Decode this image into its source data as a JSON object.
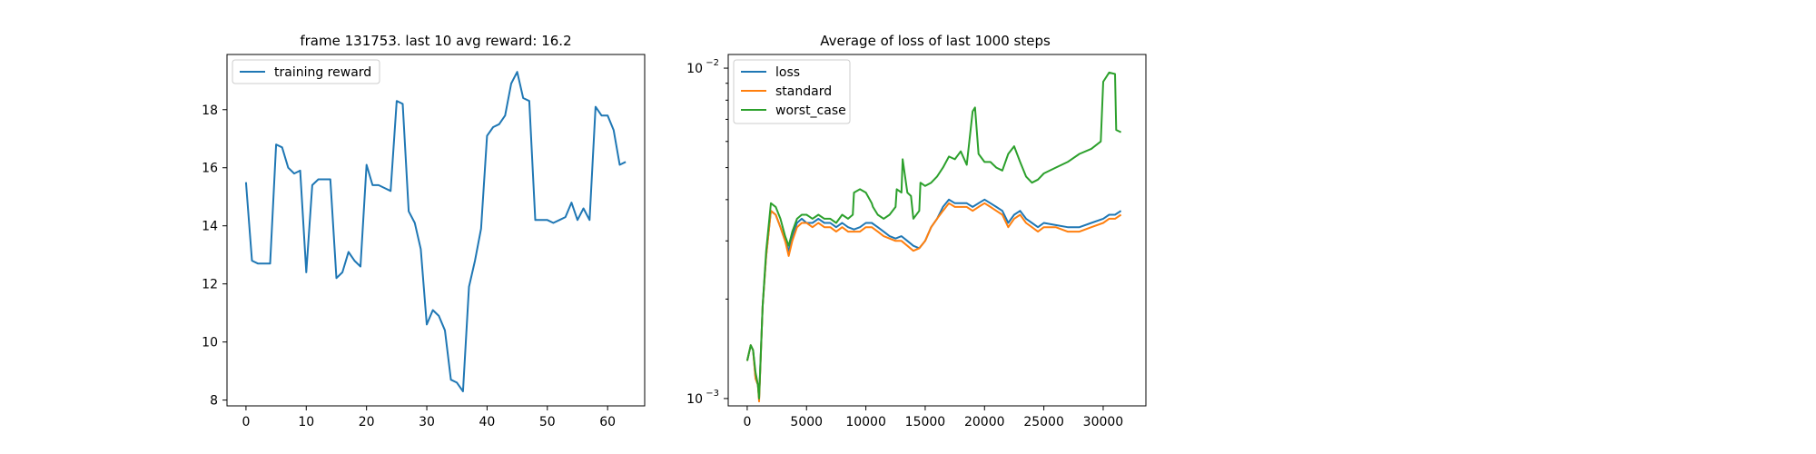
{
  "chart_data": [
    {
      "type": "line",
      "title": "frame 131753. last 10 avg reward: 16.2",
      "xlabel": "",
      "ylabel": "",
      "xlim": [
        -3.15,
        66.15
      ],
      "ylim": [
        7.8,
        19.9
      ],
      "x_ticks": [
        0,
        10,
        20,
        30,
        40,
        50,
        60
      ],
      "y_ticks": [
        8,
        10,
        12,
        14,
        16,
        18
      ],
      "x_tick_labels": [
        "0",
        "10",
        "20",
        "30",
        "40",
        "50",
        "60"
      ],
      "y_tick_labels": [
        "8",
        "10",
        "12",
        "14",
        "16",
        "18"
      ],
      "yscale": "linear",
      "grid": false,
      "legend_position": "upper left",
      "series": [
        {
          "name": "training reward",
          "color": "#1f77b4",
          "x": [
            0,
            1,
            2,
            3,
            4,
            5,
            6,
            7,
            8,
            9,
            10,
            11,
            12,
            13,
            14,
            15,
            16,
            17,
            18,
            19,
            20,
            21,
            22,
            23,
            24,
            25,
            26,
            27,
            28,
            29,
            30,
            31,
            32,
            33,
            34,
            35,
            36,
            37,
            38,
            39,
            40,
            41,
            42,
            43,
            44,
            45,
            46,
            47,
            48,
            49,
            50,
            51,
            52,
            53,
            54,
            55,
            56,
            57,
            58,
            59,
            60,
            61,
            62,
            63
          ],
          "values": [
            15.5,
            12.8,
            12.7,
            12.7,
            12.7,
            16.8,
            16.7,
            16.0,
            15.8,
            15.9,
            12.4,
            15.4,
            15.6,
            15.6,
            15.6,
            12.2,
            12.4,
            13.1,
            12.8,
            12.6,
            16.1,
            15.4,
            15.4,
            15.3,
            15.2,
            18.3,
            18.2,
            14.5,
            14.1,
            13.2,
            10.6,
            11.1,
            10.9,
            10.4,
            8.7,
            8.6,
            8.3,
            11.9,
            12.8,
            13.9,
            17.1,
            17.4,
            17.5,
            17.8,
            18.9,
            19.3,
            18.4,
            18.3,
            14.2,
            14.2,
            14.2,
            14.1,
            14.2,
            14.3,
            14.8,
            14.2,
            14.6,
            14.2,
            18.1,
            17.8,
            17.8,
            17.3,
            16.1,
            16.2
          ]
        }
      ]
    },
    {
      "type": "line",
      "title": "Average of loss of last 1000 steps",
      "xlabel": "",
      "ylabel": "",
      "xlim": [
        -1600,
        33600
      ],
      "ylim": [
        0.00095,
        0.011
      ],
      "yscale": "log",
      "x_ticks": [
        0,
        5000,
        10000,
        15000,
        20000,
        25000,
        30000
      ],
      "x_tick_labels": [
        "0",
        "5000",
        "10000",
        "15000",
        "20000",
        "25000",
        "30000"
      ],
      "y_major_ticks": [
        0.001,
        0.01
      ],
      "y_major_tick_labels": [
        [
          "10",
          "−3"
        ],
        [
          "10",
          "−2"
        ]
      ],
      "grid": false,
      "legend_position": "upper left",
      "series": [
        {
          "name": "loss",
          "color": "#1f77b4",
          "x": [
            0,
            300,
            500,
            700,
            900,
            1000,
            1300,
            1600,
            2000,
            2400,
            2800,
            3200,
            3500,
            3800,
            4200,
            4600,
            5000,
            5500,
            6000,
            6500,
            7000,
            7500,
            8000,
            8500,
            9000,
            9500,
            10000,
            10500,
            11000,
            11500,
            12000,
            12500,
            13000,
            13500,
            14000,
            14500,
            15000,
            15500,
            16000,
            16500,
            17000,
            17500,
            18000,
            18500,
            19000,
            19500,
            20000,
            20500,
            21000,
            21500,
            22000,
            22500,
            23000,
            23500,
            24000,
            24500,
            25000,
            26000,
            27000,
            28000,
            29000,
            30000,
            30500,
            31000,
            31500
          ],
          "values": [
            0.0013,
            0.00145,
            0.0014,
            0.00115,
            0.0011,
            0.001,
            0.0019,
            0.0027,
            0.0037,
            0.0036,
            0.0033,
            0.003,
            0.0028,
            0.0031,
            0.0034,
            0.0035,
            0.0034,
            0.0034,
            0.0035,
            0.0034,
            0.0034,
            0.0033,
            0.0034,
            0.0033,
            0.00325,
            0.0033,
            0.0034,
            0.0034,
            0.0033,
            0.0032,
            0.0031,
            0.00305,
            0.0031,
            0.003,
            0.0029,
            0.00285,
            0.003,
            0.0033,
            0.0035,
            0.0038,
            0.004,
            0.0039,
            0.0039,
            0.0039,
            0.0038,
            0.0039,
            0.004,
            0.0039,
            0.0038,
            0.0037,
            0.0034,
            0.0036,
            0.0037,
            0.0035,
            0.0034,
            0.0033,
            0.0034,
            0.00335,
            0.0033,
            0.0033,
            0.0034,
            0.0035,
            0.0036,
            0.0036,
            0.0037
          ]
        },
        {
          "name": "standard",
          "color": "#ff7f0e",
          "x": [
            0,
            300,
            500,
            700,
            900,
            1000,
            1300,
            1600,
            2000,
            2400,
            2800,
            3200,
            3500,
            3800,
            4200,
            4600,
            5000,
            5500,
            6000,
            6500,
            7000,
            7500,
            8000,
            8500,
            9000,
            9500,
            10000,
            10500,
            11000,
            11500,
            12000,
            12500,
            13000,
            13500,
            14000,
            14500,
            15000,
            15500,
            16000,
            16500,
            17000,
            17500,
            18000,
            18500,
            19000,
            19500,
            20000,
            20500,
            21000,
            21500,
            22000,
            22500,
            23000,
            23500,
            24000,
            24500,
            25000,
            26000,
            27000,
            28000,
            29000,
            30000,
            30500,
            31000,
            31500
          ],
          "values": [
            0.0013,
            0.00145,
            0.0014,
            0.00115,
            0.0011,
            0.00098,
            0.0019,
            0.0027,
            0.0037,
            0.0036,
            0.0033,
            0.003,
            0.0027,
            0.003,
            0.0033,
            0.0034,
            0.0034,
            0.0033,
            0.0034,
            0.0033,
            0.0033,
            0.0032,
            0.0033,
            0.0032,
            0.0032,
            0.0032,
            0.0033,
            0.0033,
            0.0032,
            0.0031,
            0.00305,
            0.003,
            0.003,
            0.0029,
            0.0028,
            0.00285,
            0.003,
            0.0033,
            0.0035,
            0.0037,
            0.0039,
            0.0038,
            0.0038,
            0.0038,
            0.0037,
            0.0038,
            0.0039,
            0.0038,
            0.0037,
            0.0036,
            0.0033,
            0.0035,
            0.0036,
            0.0034,
            0.0033,
            0.0032,
            0.0033,
            0.0033,
            0.0032,
            0.0032,
            0.0033,
            0.0034,
            0.0035,
            0.0035,
            0.0036
          ]
        },
        {
          "name": "worst_case",
          "color": "#2ca02c",
          "x": [
            0,
            300,
            500,
            700,
            900,
            1000,
            1300,
            1600,
            2000,
            2400,
            2800,
            3200,
            3500,
            3800,
            4200,
            4600,
            5000,
            5500,
            6000,
            6500,
            7000,
            7500,
            8000,
            8500,
            8900,
            9000,
            9500,
            10000,
            10500,
            10600,
            11000,
            11500,
            12000,
            12500,
            12600,
            13000,
            13100,
            13500,
            13800,
            14000,
            14500,
            14600,
            15000,
            15500,
            16000,
            16500,
            17000,
            17500,
            18000,
            18500,
            19000,
            19200,
            19500,
            20000,
            20500,
            21000,
            21500,
            22000,
            22500,
            23000,
            23500,
            24000,
            24500,
            25000,
            26000,
            27000,
            28000,
            29000,
            29800,
            30000,
            30500,
            31000,
            31100,
            31500
          ],
          "values": [
            0.0013,
            0.00145,
            0.0014,
            0.0012,
            0.0011,
            0.001,
            0.0019,
            0.0028,
            0.0039,
            0.0038,
            0.0035,
            0.0031,
            0.0029,
            0.0032,
            0.0035,
            0.0036,
            0.0036,
            0.0035,
            0.0036,
            0.0035,
            0.0035,
            0.0034,
            0.0036,
            0.0035,
            0.0036,
            0.0042,
            0.0043,
            0.0042,
            0.0039,
            0.0038,
            0.0036,
            0.0035,
            0.0036,
            0.0038,
            0.0043,
            0.0042,
            0.0053,
            0.0042,
            0.0041,
            0.0035,
            0.0037,
            0.0045,
            0.0044,
            0.0045,
            0.0047,
            0.005,
            0.0054,
            0.0053,
            0.0056,
            0.0051,
            0.0074,
            0.0076,
            0.0055,
            0.0052,
            0.0052,
            0.005,
            0.0049,
            0.0055,
            0.0058,
            0.0052,
            0.0047,
            0.0045,
            0.0046,
            0.0048,
            0.005,
            0.0052,
            0.0055,
            0.0057,
            0.006,
            0.0091,
            0.0097,
            0.0096,
            0.0065,
            0.0064
          ]
        }
      ]
    }
  ]
}
